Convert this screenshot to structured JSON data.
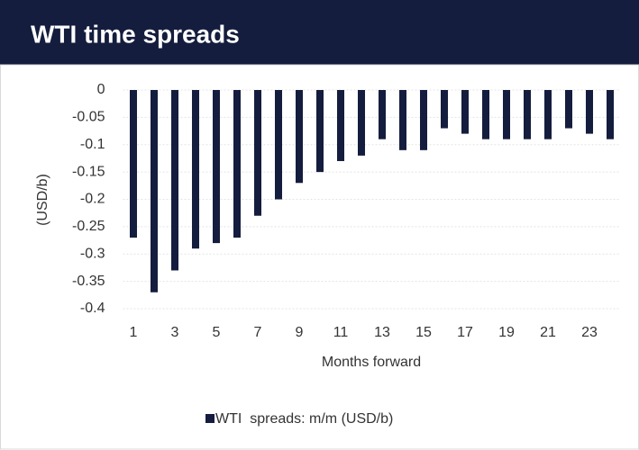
{
  "chart_data": {
    "type": "bar",
    "title": "WTI time spreads",
    "x_label": "Months forward",
    "y_label": "(USD/b)",
    "categories": [
      1,
      null,
      3,
      null,
      5,
      null,
      7,
      null,
      9,
      null,
      11,
      null,
      13,
      null,
      15,
      null,
      17,
      null,
      19,
      null,
      21,
      null,
      23,
      null
    ],
    "series": [
      {
        "name": "WTI  spreads: m/m (USD/b)",
        "color": "#141d3d",
        "values": [
          -0.27,
          -0.37,
          -0.33,
          -0.29,
          -0.28,
          -0.27,
          -0.23,
          -0.2,
          -0.17,
          -0.15,
          -0.13,
          -0.12,
          -0.09,
          -0.11,
          -0.11,
          -0.07,
          -0.08,
          -0.09,
          -0.09,
          -0.09,
          -0.09,
          -0.07,
          -0.08,
          -0.09
        ]
      }
    ],
    "ylim": [
      -0.4,
      0
    ],
    "yticks": [
      0,
      -0.05,
      -0.1,
      -0.15,
      -0.2,
      -0.25,
      -0.3,
      -0.35,
      -0.4
    ],
    "grid": true
  }
}
